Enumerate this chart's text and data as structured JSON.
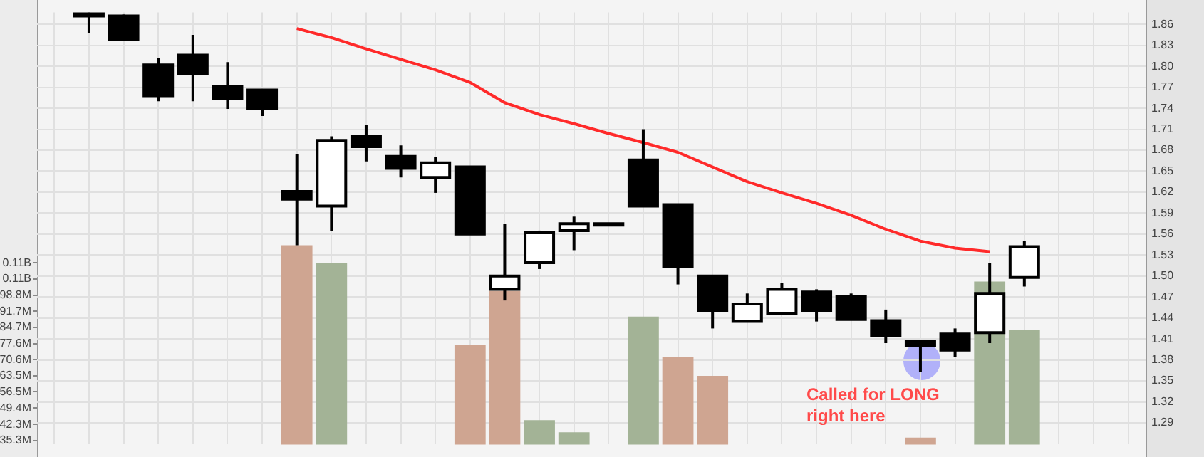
{
  "chart_data": {
    "type": "candlestick",
    "categories": [
      null,
      null,
      null,
      null,
      null,
      null,
      null,
      null,
      null,
      null,
      null,
      null,
      null,
      null,
      null,
      null,
      null,
      null,
      null,
      null,
      null,
      null,
      null,
      null,
      null,
      null,
      null,
      null,
      null,
      null,
      null,
      null
    ],
    "ohlc": [
      null,
      [
        1.876,
        1.877,
        1.848,
        1.872
      ],
      [
        1.872,
        1.874,
        1.839,
        1.839
      ],
      [
        1.802,
        1.812,
        1.75,
        1.758
      ],
      [
        1.816,
        1.845,
        1.75,
        1.789
      ],
      [
        1.771,
        1.806,
        1.739,
        1.754
      ],
      [
        1.766,
        1.766,
        1.729,
        1.739
      ],
      [
        1.621,
        1.675,
        1.544,
        1.61
      ],
      [
        1.6,
        1.7,
        1.565,
        1.694
      ],
      [
        1.7,
        1.716,
        1.664,
        1.685
      ],
      [
        1.671,
        1.687,
        1.641,
        1.654
      ],
      [
        1.641,
        1.67,
        1.619,
        1.662
      ],
      [
        1.656,
        1.656,
        1.56,
        1.56
      ],
      [
        1.481,
        1.575,
        1.465,
        1.5
      ],
      [
        1.519,
        1.565,
        1.51,
        1.562
      ],
      [
        1.565,
        1.585,
        1.537,
        1.575
      ],
      [
        1.575,
        1.575,
        1.575,
        1.575
      ],
      [
        1.666,
        1.71,
        1.6,
        1.6
      ],
      [
        1.602,
        1.602,
        1.488,
        1.513
      ],
      [
        1.5,
        1.5,
        1.425,
        1.45
      ],
      [
        1.435,
        1.475,
        1.435,
        1.46
      ],
      [
        1.446,
        1.49,
        1.446,
        1.481
      ],
      [
        1.477,
        1.481,
        1.435,
        1.45
      ],
      [
        1.471,
        1.475,
        1.438,
        1.438
      ],
      [
        1.436,
        1.452,
        1.404,
        1.415
      ],
      [
        1.406,
        1.406,
        1.363,
        1.4
      ],
      [
        1.417,
        1.425,
        1.384,
        1.394
      ],
      [
        1.419,
        1.519,
        1.404,
        1.475
      ],
      [
        1.498,
        1.55,
        1.485,
        1.542
      ],
      null,
      null,
      null
    ],
    "series": [
      {
        "type": "bar",
        "axis": "y2",
        "values": [
          null,
          null,
          null,
          null,
          null,
          null,
          null,
          120600000,
          112900000,
          null,
          null,
          null,
          77000000,
          100600000,
          44100000,
          38800000,
          null,
          89400000,
          71800000,
          63500000,
          null,
          null,
          null,
          null,
          null,
          36500000,
          null,
          104700000,
          83500000,
          null,
          null,
          null
        ],
        "colors": [
          "#cfa591",
          "#cfa591",
          "#cfa591",
          "#cfa591",
          "#cfa591",
          "#cfa591",
          "#cfa591",
          "#cfa591",
          "#a3b396",
          "#a3b396",
          "#a3b396",
          "#a3b396",
          "#cfa591",
          "#cfa591",
          "#a3b396",
          "#a3b396",
          "#a3b396",
          "#a3b396",
          "#cfa591",
          "#cfa591",
          "#a3b396",
          "#a3b396",
          "#a3b396",
          "#a3b396",
          "#a3b396",
          "#cfa591",
          "#a3b396",
          "#a3b396",
          "#a3b396",
          "#a3b396",
          "#a3b396",
          "#a3b396"
        ]
      },
      {
        "type": "line",
        "color": "#ff2a2a",
        "values": [
          null,
          null,
          null,
          null,
          null,
          null,
          null,
          1.854,
          1.841,
          1.825,
          1.81,
          1.795,
          1.777,
          1.748,
          1.731,
          1.718,
          1.704,
          1.691,
          1.677,
          1.656,
          1.635,
          1.619,
          1.604,
          1.587,
          1.567,
          1.55,
          1.54,
          1.535,
          null,
          null,
          null,
          null
        ]
      }
    ],
    "ylim": [
      1.259,
      1.877
    ],
    "yticks": [
      1.29,
      1.32,
      1.35,
      1.38,
      1.41,
      1.44,
      1.47,
      {
        "value": 1.5,
        "label": "1.50"
      },
      1.53,
      1.56,
      1.59,
      1.62,
      1.65,
      1.68,
      1.71,
      1.74,
      1.77,
      {
        "value": 1.8,
        "label": "1.80"
      },
      1.83,
      1.86
    ],
    "y2lim": [
      33500000,
      222300000
    ],
    "y2ticks": [
      {
        "value": 35300000,
        "label": "35.3M"
      },
      {
        "value": 42300000,
        "label": "42.3M"
      },
      {
        "value": 49400000,
        "label": "49.4M"
      },
      {
        "value": 56500000,
        "label": "56.5M"
      },
      {
        "value": 63500000,
        "label": "63.5M"
      },
      {
        "value": 70600000,
        "label": "70.6M"
      },
      {
        "value": 77600000,
        "label": "77.6M"
      },
      {
        "value": 84700000,
        "label": "84.7M"
      },
      {
        "value": 91700000,
        "label": "91.7M"
      },
      {
        "value": 98800000,
        "label": "98.8M"
      },
      {
        "value": 105900000,
        "label": "0.11B"
      },
      {
        "value": 112900000,
        "label": "0.11B"
      }
    ],
    "grid": true,
    "marker": "none",
    "annotations": [
      "Called for LONG right here"
    ]
  }
}
